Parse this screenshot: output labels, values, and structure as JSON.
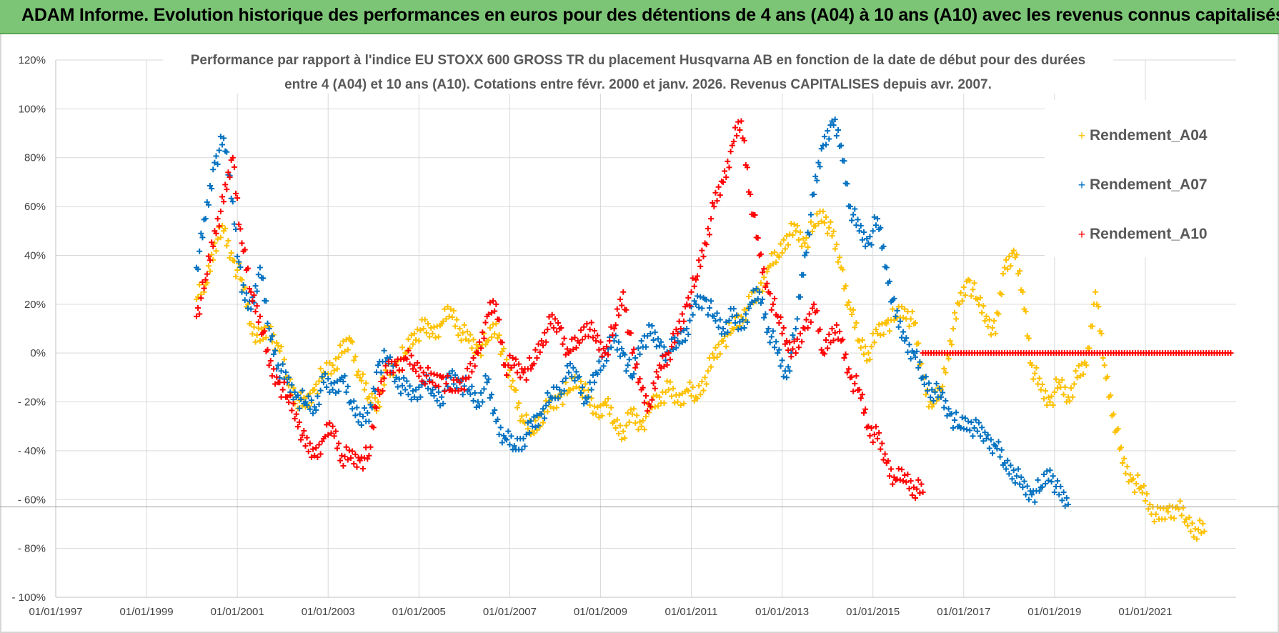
{
  "banner": {
    "title": "ADAM Informe. Evolution historique des performances en euros pour des détentions de 4 ans (A04) à 10 ans (A10) avec les revenus connus capitalisés"
  },
  "colors": {
    "banner": "#7cc576",
    "A04": "#ffc000",
    "A07": "#0070c0",
    "A10": "#ff0000",
    "grid": "#d9d9d9"
  },
  "chart_data": {
    "type": "scatter",
    "title_line1": "Performance par rapport à l'indice EU STOXX 600 GROSS TR  du placement Husqvarna AB en fonction de la date de début pour des durées",
    "title_line2": "entre 4 (A04) et 10 ans (A10).  Cotations entre févr. 2000 et janv. 2026. Revenus CAPITALISES depuis avr. 2007.",
    "xlabel": "",
    "ylabel": "",
    "x_ticks": [
      "01/01/1997",
      "01/01/1999",
      "01/01/2001",
      "01/01/2003",
      "01/01/2005",
      "01/01/2007",
      "01/01/2009",
      "01/01/2011",
      "01/01/2013",
      "01/01/2015",
      "01/01/2017",
      "01/01/2019",
      "01/01/2021"
    ],
    "xlim": [
      1997.0,
      2023.0
    ],
    "y_ticks": [
      "120%",
      "100%",
      "80%",
      "60%",
      "40%",
      "20%",
      "0%",
      "- 20%",
      "- 40%",
      "- 60%",
      "- 80%",
      "- 100%"
    ],
    "ylim": [
      -100,
      120
    ],
    "legend_position": "right",
    "series": [
      {
        "name": "Rendement_A04",
        "color": "#ffc000",
        "points": [
          [
            2000.1,
            22
          ],
          [
            2000.3,
            28
          ],
          [
            2000.5,
            45
          ],
          [
            2000.7,
            50
          ],
          [
            2000.9,
            38
          ],
          [
            2001.1,
            30
          ],
          [
            2001.3,
            12
          ],
          [
            2001.5,
            5
          ],
          [
            2001.7,
            10
          ],
          [
            2001.9,
            3
          ],
          [
            2002.1,
            -10
          ],
          [
            2002.3,
            -18
          ],
          [
            2002.5,
            -22
          ],
          [
            2002.7,
            -15
          ],
          [
            2002.9,
            -8
          ],
          [
            2003.1,
            -5
          ],
          [
            2003.3,
            0
          ],
          [
            2003.5,
            5
          ],
          [
            2003.7,
            -10
          ],
          [
            2003.9,
            -18
          ],
          [
            2004.1,
            -20
          ],
          [
            2004.3,
            -8
          ],
          [
            2004.5,
            -5
          ],
          [
            2004.7,
            0
          ],
          [
            2004.9,
            8
          ],
          [
            2005.1,
            10
          ],
          [
            2005.3,
            8
          ],
          [
            2005.5,
            12
          ],
          [
            2005.7,
            18
          ],
          [
            2005.9,
            10
          ],
          [
            2006.1,
            5
          ],
          [
            2006.3,
            2
          ],
          [
            2006.5,
            5
          ],
          [
            2006.7,
            12
          ],
          [
            2006.9,
            -5
          ],
          [
            2007.1,
            -15
          ],
          [
            2007.3,
            -28
          ],
          [
            2007.5,
            -32
          ],
          [
            2007.7,
            -25
          ],
          [
            2007.9,
            -22
          ],
          [
            2008.1,
            -18
          ],
          [
            2008.3,
            -15
          ],
          [
            2008.5,
            -10
          ],
          [
            2008.7,
            -18
          ],
          [
            2008.9,
            -25
          ],
          [
            2009.1,
            -20
          ],
          [
            2009.3,
            -28
          ],
          [
            2009.5,
            -32
          ],
          [
            2009.7,
            -25
          ],
          [
            2009.9,
            -30
          ],
          [
            2010.1,
            -22
          ],
          [
            2010.3,
            -18
          ],
          [
            2010.5,
            -15
          ],
          [
            2010.7,
            -20
          ],
          [
            2010.9,
            -15
          ],
          [
            2011.1,
            -18
          ],
          [
            2011.3,
            -10
          ],
          [
            2011.5,
            -2
          ],
          [
            2011.7,
            5
          ],
          [
            2011.9,
            10
          ],
          [
            2012.1,
            15
          ],
          [
            2012.3,
            20
          ],
          [
            2012.5,
            25
          ],
          [
            2012.7,
            35
          ],
          [
            2012.9,
            40
          ],
          [
            2013.1,
            48
          ],
          [
            2013.3,
            50
          ],
          [
            2013.5,
            45
          ],
          [
            2013.7,
            52
          ],
          [
            2013.9,
            58
          ],
          [
            2014.1,
            48
          ],
          [
            2014.3,
            35
          ],
          [
            2014.5,
            18
          ],
          [
            2014.7,
            5
          ],
          [
            2014.9,
            0
          ],
          [
            2015.1,
            8
          ],
          [
            2015.3,
            12
          ],
          [
            2015.5,
            15
          ],
          [
            2015.7,
            18
          ],
          [
            2015.9,
            12
          ],
          [
            2016.1,
            -10
          ],
          [
            2016.3,
            -22
          ],
          [
            2016.5,
            -15
          ],
          [
            2016.7,
            5
          ],
          [
            2016.9,
            20
          ],
          [
            2017.1,
            30
          ],
          [
            2017.3,
            22
          ],
          [
            2017.5,
            15
          ],
          [
            2017.7,
            8
          ],
          [
            2017.9,
            35
          ],
          [
            2018.1,
            42
          ],
          [
            2018.3,
            25
          ],
          [
            2018.5,
            -5
          ],
          [
            2018.7,
            -15
          ],
          [
            2018.9,
            -20
          ],
          [
            2019.1,
            -12
          ],
          [
            2019.3,
            -18
          ],
          [
            2019.5,
            -10
          ],
          [
            2019.7,
            -5
          ],
          [
            2019.9,
            25
          ],
          [
            2020.1,
            -5
          ],
          [
            2020.3,
            -25
          ],
          [
            2020.5,
            -45
          ],
          [
            2020.7,
            -52
          ],
          [
            2020.9,
            -55
          ],
          [
            2021.1,
            -62
          ],
          [
            2021.3,
            -68
          ],
          [
            2021.5,
            -65
          ],
          [
            2021.7,
            -63
          ],
          [
            2021.9,
            -68
          ],
          [
            2022.1,
            -72
          ],
          [
            2022.3,
            -73
          ]
        ]
      },
      {
        "name": "Rendement_A07",
        "color": "#0070c0",
        "points": [
          [
            2000.1,
            35
          ],
          [
            2000.3,
            55
          ],
          [
            2000.5,
            78
          ],
          [
            2000.7,
            88
          ],
          [
            2000.9,
            62
          ],
          [
            2001.1,
            25
          ],
          [
            2001.3,
            18
          ],
          [
            2001.5,
            35
          ],
          [
            2001.7,
            10
          ],
          [
            2001.9,
            -5
          ],
          [
            2002.1,
            -12
          ],
          [
            2002.3,
            -18
          ],
          [
            2002.5,
            -20
          ],
          [
            2002.7,
            -22
          ],
          [
            2002.9,
            -12
          ],
          [
            2003.1,
            -15
          ],
          [
            2003.3,
            -10
          ],
          [
            2003.5,
            -20
          ],
          [
            2003.7,
            -25
          ],
          [
            2003.9,
            -28
          ],
          [
            2004.1,
            -5
          ],
          [
            2004.3,
            -2
          ],
          [
            2004.5,
            -10
          ],
          [
            2004.7,
            -15
          ],
          [
            2004.9,
            -18
          ],
          [
            2005.1,
            -12
          ],
          [
            2005.3,
            -15
          ],
          [
            2005.5,
            -18
          ],
          [
            2005.7,
            -10
          ],
          [
            2005.9,
            -12
          ],
          [
            2006.1,
            -15
          ],
          [
            2006.3,
            -20
          ],
          [
            2006.5,
            -12
          ],
          [
            2006.7,
            -28
          ],
          [
            2006.9,
            -35
          ],
          [
            2007.1,
            -38
          ],
          [
            2007.3,
            -35
          ],
          [
            2007.5,
            -30
          ],
          [
            2007.7,
            -25
          ],
          [
            2007.9,
            -18
          ],
          [
            2008.1,
            -15
          ],
          [
            2008.3,
            -8
          ],
          [
            2008.5,
            -10
          ],
          [
            2008.7,
            -20
          ],
          [
            2008.9,
            -8
          ],
          [
            2009.1,
            0
          ],
          [
            2009.3,
            5
          ],
          [
            2009.5,
            0
          ],
          [
            2009.7,
            -10
          ],
          [
            2009.9,
            5
          ],
          [
            2010.1,
            8
          ],
          [
            2010.3,
            3
          ],
          [
            2010.5,
            0
          ],
          [
            2010.7,
            5
          ],
          [
            2010.9,
            10
          ],
          [
            2011.1,
            20
          ],
          [
            2011.3,
            22
          ],
          [
            2011.5,
            15
          ],
          [
            2011.7,
            10
          ],
          [
            2011.9,
            15
          ],
          [
            2012.1,
            10
          ],
          [
            2012.3,
            20
          ],
          [
            2012.5,
            25
          ],
          [
            2012.7,
            10
          ],
          [
            2012.9,
            0
          ],
          [
            2013.1,
            -10
          ],
          [
            2013.3,
            10
          ],
          [
            2013.5,
            40
          ],
          [
            2013.7,
            65
          ],
          [
            2013.9,
            85
          ],
          [
            2014.1,
            95
          ],
          [
            2014.3,
            85
          ],
          [
            2014.5,
            60
          ],
          [
            2014.7,
            50
          ],
          [
            2014.9,
            45
          ],
          [
            2015.1,
            55
          ],
          [
            2015.3,
            35
          ],
          [
            2015.5,
            15
          ],
          [
            2015.7,
            5
          ],
          [
            2015.9,
            0
          ],
          [
            2016.1,
            -10
          ],
          [
            2016.3,
            -15
          ],
          [
            2016.5,
            -18
          ],
          [
            2016.7,
            -25
          ],
          [
            2016.9,
            -30
          ],
          [
            2017.1,
            -28
          ],
          [
            2017.3,
            -32
          ],
          [
            2017.5,
            -35
          ],
          [
            2017.7,
            -38
          ],
          [
            2017.9,
            -45
          ],
          [
            2018.1,
            -48
          ],
          [
            2018.3,
            -55
          ],
          [
            2018.5,
            -58
          ],
          [
            2018.7,
            -55
          ],
          [
            2018.9,
            -48
          ],
          [
            2019.1,
            -58
          ],
          [
            2019.3,
            -62
          ]
        ]
      },
      {
        "name": "Rendement_A10",
        "color": "#ff0000",
        "points": [
          [
            2000.1,
            15
          ],
          [
            2000.3,
            30
          ],
          [
            2000.5,
            50
          ],
          [
            2000.7,
            62
          ],
          [
            2000.9,
            80
          ],
          [
            2001.1,
            45
          ],
          [
            2001.3,
            25
          ],
          [
            2001.5,
            15
          ],
          [
            2001.7,
            -5
          ],
          [
            2001.9,
            -12
          ],
          [
            2002.1,
            -18
          ],
          [
            2002.3,
            -25
          ],
          [
            2002.5,
            -38
          ],
          [
            2002.7,
            -42
          ],
          [
            2002.9,
            -35
          ],
          [
            2003.1,
            -30
          ],
          [
            2003.3,
            -42
          ],
          [
            2003.5,
            -43
          ],
          [
            2003.7,
            -44
          ],
          [
            2003.9,
            -42
          ],
          [
            2004.1,
            -15
          ],
          [
            2004.3,
            -8
          ],
          [
            2004.5,
            -5
          ],
          [
            2004.7,
            -2
          ],
          [
            2004.9,
            -5
          ],
          [
            2005.1,
            -8
          ],
          [
            2005.3,
            -12
          ],
          [
            2005.5,
            -10
          ],
          [
            2005.7,
            -15
          ],
          [
            2005.9,
            -12
          ],
          [
            2006.1,
            -10
          ],
          [
            2006.3,
            0
          ],
          [
            2006.5,
            15
          ],
          [
            2006.7,
            20
          ],
          [
            2006.9,
            -5
          ],
          [
            2007.1,
            -5
          ],
          [
            2007.3,
            -8
          ],
          [
            2007.5,
            -5
          ],
          [
            2007.7,
            5
          ],
          [
            2007.9,
            12
          ],
          [
            2008.1,
            10
          ],
          [
            2008.3,
            0
          ],
          [
            2008.5,
            5
          ],
          [
            2008.7,
            12
          ],
          [
            2008.9,
            5
          ],
          [
            2009.1,
            0
          ],
          [
            2009.3,
            10
          ],
          [
            2009.5,
            25
          ],
          [
            2009.7,
            0
          ],
          [
            2009.9,
            -15
          ],
          [
            2010.1,
            -22
          ],
          [
            2010.3,
            -5
          ],
          [
            2010.5,
            0
          ],
          [
            2010.7,
            8
          ],
          [
            2010.9,
            20
          ],
          [
            2011.1,
            30
          ],
          [
            2011.3,
            45
          ],
          [
            2011.5,
            60
          ],
          [
            2011.7,
            70
          ],
          [
            2011.9,
            85
          ],
          [
            2012.1,
            95
          ],
          [
            2012.3,
            65
          ],
          [
            2012.5,
            40
          ],
          [
            2012.7,
            25
          ],
          [
            2012.9,
            15
          ],
          [
            2013.1,
            5
          ],
          [
            2013.3,
            0
          ],
          [
            2013.5,
            10
          ],
          [
            2013.7,
            20
          ],
          [
            2013.9,
            0
          ],
          [
            2014.1,
            10
          ],
          [
            2014.3,
            5
          ],
          [
            2014.5,
            -10
          ],
          [
            2014.7,
            -15
          ],
          [
            2014.9,
            -30
          ],
          [
            2015.1,
            -35
          ],
          [
            2015.3,
            -45
          ],
          [
            2015.5,
            -52
          ],
          [
            2015.7,
            -50
          ],
          [
            2015.9,
            -55
          ],
          [
            2016.1,
            -57
          ]
        ]
      }
    ],
    "flat_zero_segment": {
      "series": "Rendement_A10",
      "x_start": 2016.1,
      "x_end": 2022.9,
      "value": 0
    }
  }
}
